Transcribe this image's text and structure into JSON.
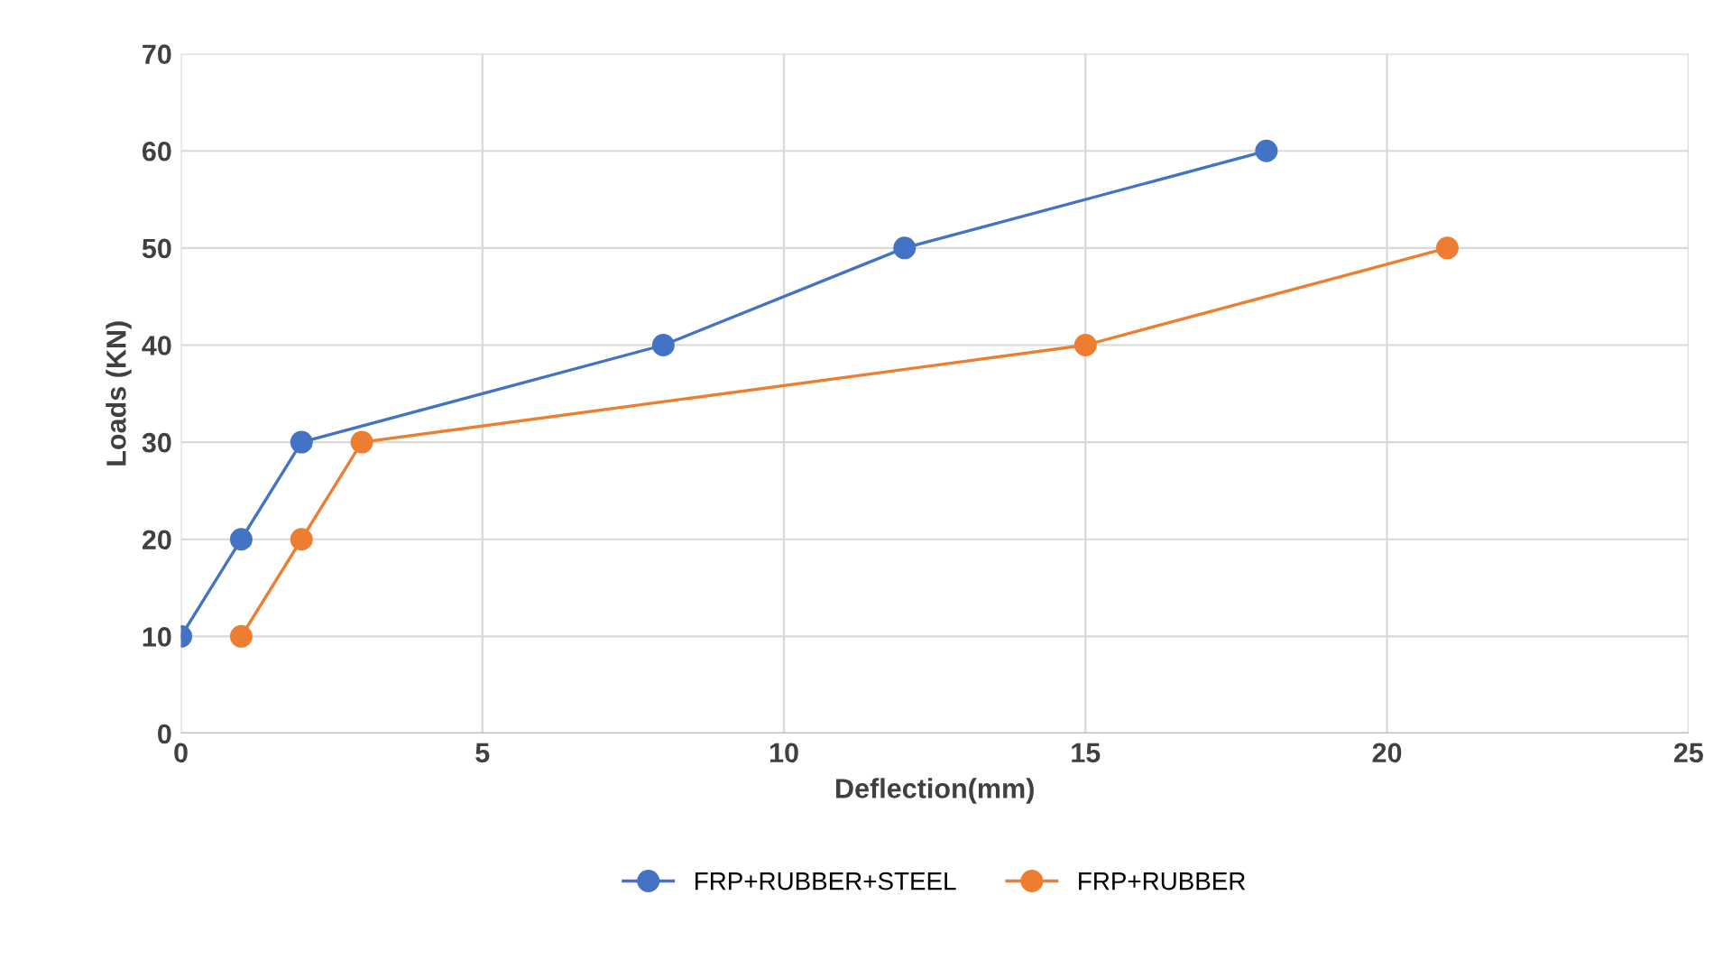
{
  "chart_data": {
    "type": "line",
    "xlabel": "Deflection(mm)",
    "ylabel": "Loads (KN)",
    "xlim": [
      0,
      25
    ],
    "xticks": [
      0,
      5,
      10,
      15,
      20,
      25
    ],
    "ylim": [
      0,
      70
    ],
    "yticks": [
      0,
      10,
      20,
      30,
      40,
      50,
      60,
      70
    ],
    "grid": true,
    "legend": "bottom",
    "marker": "circle",
    "line_style": "solid",
    "series": [
      {
        "name": "FRP+RUBBER+STEEL",
        "color": "#4472c4",
        "x": [
          0,
          1,
          2,
          8,
          12,
          18
        ],
        "values": [
          10,
          20,
          30,
          40,
          50,
          60
        ]
      },
      {
        "name": "FRP+RUBBER",
        "color": "#ed7d31",
        "x": [
          1,
          2,
          3,
          15,
          21
        ],
        "values": [
          10,
          20,
          30,
          40,
          50
        ]
      }
    ]
  }
}
